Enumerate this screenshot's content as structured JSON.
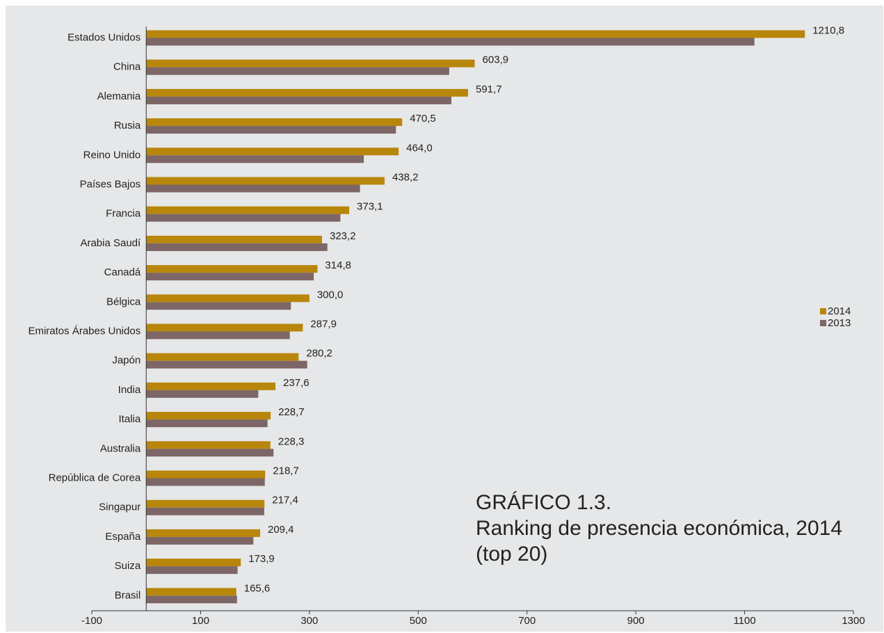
{
  "chart_data": {
    "type": "bar",
    "orientation": "horizontal",
    "title_lines": [
      "GRÁFICO 1.3.",
      "Ranking de presencia económica, 2014",
      "(top 20)"
    ],
    "categories": [
      "Estados Unidos",
      "China",
      "Alemania",
      "Rusia",
      "Reino Unido",
      "Países Bajos",
      "Francia",
      "Arabia Saudí",
      "Canadá",
      "Bélgica",
      "Emiratos Árabes Unidos",
      "Japón",
      "India",
      "Italia",
      "Australia",
      "República de Corea",
      "Singapur",
      "España",
      "Suiza",
      "Brasil"
    ],
    "series": [
      {
        "name": "2014",
        "color": "#b8860b",
        "values": [
          1210.8,
          603.9,
          591.7,
          470.5,
          464.0,
          438.2,
          373.1,
          323.2,
          314.8,
          300.0,
          287.9,
          280.2,
          237.6,
          228.7,
          228.3,
          218.7,
          217.4,
          209.4,
          173.9,
          165.6
        ]
      },
      {
        "name": "2013",
        "color": "#7d6666",
        "values": [
          1118,
          557,
          561,
          459,
          400,
          393,
          357,
          333,
          308,
          266,
          264,
          296,
          206,
          223,
          234,
          218,
          217,
          197,
          168,
          167
        ]
      }
    ],
    "data_labels": [
      "1210,8",
      "603,9",
      "591,7",
      "470,5",
      "464,0",
      "438,2",
      "373,1",
      "323,2",
      "314,8",
      "300,0",
      "287,9",
      "280,2",
      "237,6",
      "228,7",
      "228,3",
      "218,7",
      "217,4",
      "209,4",
      "173,9",
      "165,6"
    ],
    "x_ticks": [
      -100,
      100,
      300,
      500,
      700,
      900,
      1100,
      1300
    ],
    "x_tick_labels": [
      "-100",
      "100",
      "300",
      "500",
      "700",
      "900",
      "1100",
      "1300"
    ],
    "xlim": [
      -100,
      1300
    ],
    "legend": {
      "placement": "right",
      "items": [
        "2014",
        "2013"
      ]
    },
    "grid": false
  }
}
